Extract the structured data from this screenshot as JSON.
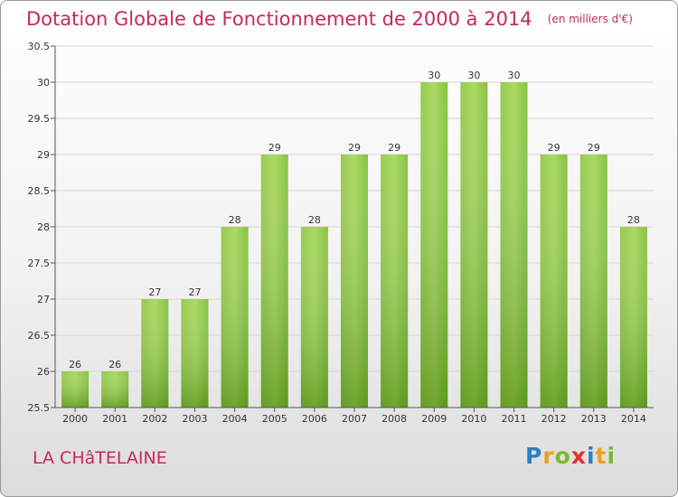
{
  "header": {
    "title": "Dotation Globale de Fonctionnement de 2000 à 2014",
    "subtitle": "(en milliers d'€)"
  },
  "commune": "LA CHâTELAINE",
  "logo": {
    "text": "Proxiti",
    "letters": [
      {
        "ch": "P",
        "color": "#2f7fc1"
      },
      {
        "ch": "r",
        "color": "#f0a01c"
      },
      {
        "ch": "o",
        "color": "#7cb82f"
      },
      {
        "ch": "x",
        "color": "#e4312b"
      },
      {
        "ch": "i",
        "color": "#2f7fc1"
      },
      {
        "ch": "t",
        "color": "#f0a01c"
      },
      {
        "ch": "i",
        "color": "#7cb82f"
      }
    ]
  },
  "colors": {
    "accent": "#c7285e",
    "bar_light": "#9fd150",
    "bar_dark": "#5e9e1a",
    "axis": "#555555",
    "grid": "#d6d6d6"
  },
  "chart_data": {
    "type": "bar",
    "title": "Dotation Globale de Fonctionnement de 2000 à 2014",
    "subtitle": "(en milliers d'€)",
    "xlabel": "",
    "ylabel": "",
    "categories": [
      "2000",
      "2001",
      "2002",
      "2003",
      "2004",
      "2005",
      "2006",
      "2007",
      "2008",
      "2009",
      "2010",
      "2011",
      "2012",
      "2013",
      "2014"
    ],
    "values": [
      26,
      26,
      27,
      27,
      28,
      29,
      28,
      29,
      29,
      30,
      30,
      30,
      29,
      29,
      28
    ],
    "ylim": [
      25.5,
      30.5
    ],
    "yticks": [
      "25.5",
      "26",
      "26.5",
      "27",
      "27.5",
      "28",
      "28.5",
      "29",
      "29.5",
      "30",
      "30.5"
    ],
    "grid": true,
    "data_labels": true
  }
}
